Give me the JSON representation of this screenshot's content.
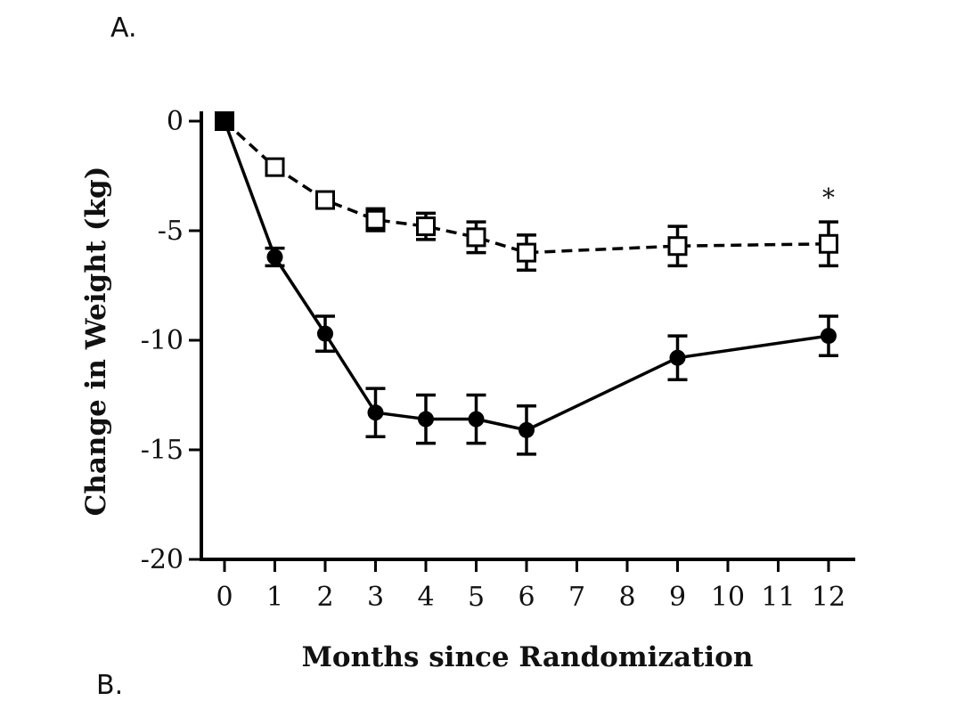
{
  "panel_label": "A.",
  "next_panel_label": "B.",
  "chart_data": {
    "type": "line",
    "title": "",
    "xlabel": "Months since Randomization",
    "ylabel": "Change in Weight (kg)",
    "xlim": [
      0,
      12
    ],
    "ylim": [
      -20,
      0
    ],
    "x_ticks": [
      0,
      1,
      2,
      3,
      4,
      5,
      6,
      7,
      8,
      9,
      10,
      11,
      12
    ],
    "y_ticks": [
      0,
      -5,
      -10,
      -15,
      -20
    ],
    "grid": false,
    "legend": "none",
    "series": [
      {
        "name": "filled circles (solid line)",
        "marker": "filled-circle",
        "line_style": "solid",
        "x": [
          0,
          1,
          2,
          3,
          4,
          5,
          6,
          9,
          12
        ],
        "y": [
          0,
          -6.2,
          -9.7,
          -13.3,
          -13.6,
          -13.6,
          -14.1,
          -10.8,
          -9.8
        ],
        "error": [
          0,
          0.4,
          0.8,
          1.1,
          1.1,
          1.1,
          1.1,
          1.0,
          0.9
        ]
      },
      {
        "name": "open squares (dashed line)",
        "marker": "open-square",
        "line_style": "dashed",
        "x": [
          0,
          1,
          2,
          3,
          4,
          5,
          6,
          9,
          12
        ],
        "y": [
          0,
          -2.1,
          -3.6,
          -4.5,
          -4.8,
          -5.3,
          -6.0,
          -5.7,
          -5.6
        ],
        "error": [
          0,
          0.2,
          0.3,
          0.5,
          0.6,
          0.7,
          0.8,
          0.9,
          1.0
        ]
      }
    ],
    "annotations": [
      {
        "text": "*",
        "x": 12,
        "y": -3.4
      }
    ]
  }
}
